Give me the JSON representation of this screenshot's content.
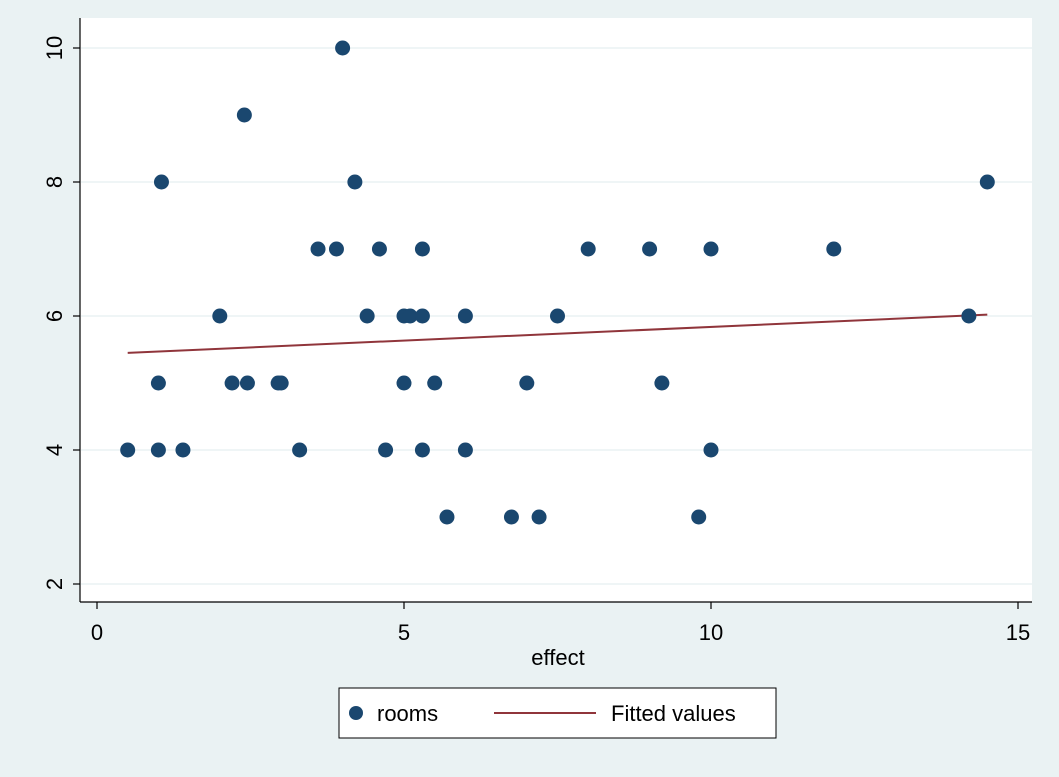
{
  "chart_data": {
    "type": "scatter",
    "title": "",
    "xlabel": "effect",
    "ylabel": "",
    "xlim": [
      0,
      15
    ],
    "ylim": [
      2,
      10
    ],
    "x_ticks": [
      0,
      5,
      10,
      15
    ],
    "y_ticks": [
      2,
      4,
      6,
      8,
      10
    ],
    "x_tick_labels": [
      "0",
      "5",
      "10",
      "15"
    ],
    "y_tick_labels": [
      "2",
      "4",
      "6",
      "8",
      "10"
    ],
    "grid": true,
    "legend_position": "bottom",
    "series": [
      {
        "name": "rooms",
        "kind": "scatter",
        "color": "#1a476f",
        "points": [
          [
            0.5,
            4
          ],
          [
            1.0,
            4
          ],
          [
            1.4,
            4
          ],
          [
            1.0,
            5
          ],
          [
            1.05,
            8
          ],
          [
            2.0,
            6
          ],
          [
            2.2,
            5
          ],
          [
            2.4,
            9
          ],
          [
            2.45,
            5
          ],
          [
            2.95,
            5
          ],
          [
            3.0,
            5
          ],
          [
            3.3,
            4
          ],
          [
            3.6,
            7
          ],
          [
            3.9,
            7
          ],
          [
            4.0,
            10
          ],
          [
            4.2,
            8
          ],
          [
            4.4,
            6
          ],
          [
            4.6,
            7
          ],
          [
            4.7,
            4
          ],
          [
            5.0,
            6
          ],
          [
            5.0,
            5
          ],
          [
            5.1,
            6
          ],
          [
            5.3,
            7
          ],
          [
            5.3,
            6
          ],
          [
            5.3,
            4
          ],
          [
            5.5,
            5
          ],
          [
            5.7,
            3
          ],
          [
            6.0,
            6
          ],
          [
            6.0,
            4
          ],
          [
            6.75,
            3
          ],
          [
            7.0,
            5
          ],
          [
            7.2,
            3
          ],
          [
            7.5,
            6
          ],
          [
            8.0,
            7
          ],
          [
            9.0,
            7
          ],
          [
            9.2,
            5
          ],
          [
            9.8,
            3
          ],
          [
            10.0,
            7
          ],
          [
            10.0,
            4
          ],
          [
            12.0,
            7
          ],
          [
            14.2,
            6
          ],
          [
            14.5,
            8
          ]
        ]
      },
      {
        "name": "Fitted values",
        "kind": "line",
        "color": "#90353b",
        "points": [
          [
            0.5,
            5.45
          ],
          [
            14.5,
            6.02
          ]
        ]
      }
    ]
  }
}
